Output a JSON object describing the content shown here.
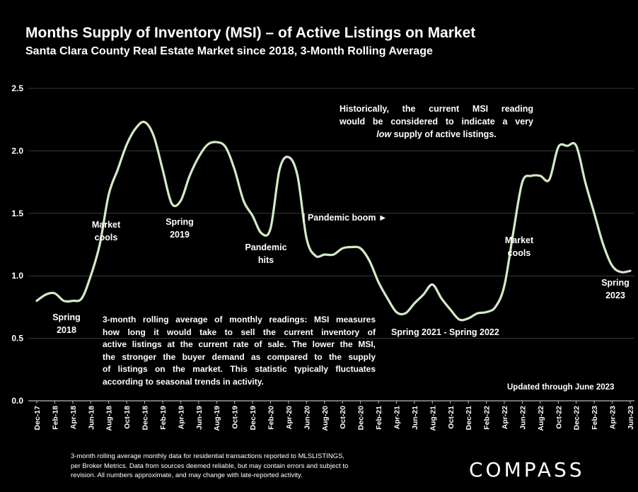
{
  "header": {
    "title": "Months Supply of Inventory (MSI) – of Active Listings on Market",
    "subtitle": "Santa Clara County Real Estate Market since 2018, 3-Month Rolling Average"
  },
  "chart_data": {
    "type": "line",
    "ylim": [
      0,
      2.5
    ],
    "yticks": [
      "0.0",
      "0.5",
      "1.0",
      "1.5",
      "2.0",
      "2.5"
    ],
    "ytick_values": [
      0,
      0.5,
      1.0,
      1.5,
      2.0,
      2.5
    ],
    "grid": true,
    "line_color": "#d3ebc5",
    "x_tick_labels": [
      "Dec-17",
      "Feb-18",
      "Apr-18",
      "Jun-18",
      "Aug-18",
      "Oct-18",
      "Dec-18",
      "Feb-19",
      "Apr-19",
      "Jun-19",
      "Aug-19",
      "Oct-19",
      "Dec-19",
      "Feb-20",
      "Apr-20",
      "Jun-20",
      "Aug-20",
      "Oct-20",
      "Dec-20",
      "Feb-21",
      "Apr-21",
      "Jun-21",
      "Aug-21",
      "Oct-21",
      "Dec-21",
      "Feb-22",
      "Apr-22",
      "Jun-22",
      "Aug-22",
      "Oct-22",
      "Dec-22",
      "Feb-23",
      "Apr-23",
      "Jun-23"
    ],
    "x": [
      "Dec-17",
      "Jan-18",
      "Feb-18",
      "Mar-18",
      "Apr-18",
      "May-18",
      "Jun-18",
      "Jul-18",
      "Aug-18",
      "Sep-18",
      "Oct-18",
      "Nov-18",
      "Dec-18",
      "Jan-19",
      "Feb-19",
      "Mar-19",
      "Apr-19",
      "May-19",
      "Jun-19",
      "Jul-19",
      "Aug-19",
      "Sep-19",
      "Oct-19",
      "Nov-19",
      "Dec-19",
      "Jan-20",
      "Feb-20",
      "Mar-20",
      "Apr-20",
      "May-20",
      "Jun-20",
      "Jul-20",
      "Aug-20",
      "Sep-20",
      "Oct-20",
      "Nov-20",
      "Dec-20",
      "Jan-21",
      "Feb-21",
      "Mar-21",
      "Apr-21",
      "May-21",
      "Jun-21",
      "Jul-21",
      "Aug-21",
      "Sep-21",
      "Oct-21",
      "Nov-21",
      "Dec-21",
      "Jan-22",
      "Feb-22",
      "Mar-22",
      "Apr-22",
      "May-22",
      "Jun-22",
      "Jul-22",
      "Aug-22",
      "Sep-22",
      "Oct-22",
      "Nov-22",
      "Dec-22",
      "Jan-23",
      "Feb-23",
      "Mar-23",
      "Apr-23",
      "May-23",
      "Jun-23"
    ],
    "values": [
      0.8,
      0.85,
      0.86,
      0.8,
      0.8,
      0.82,
      1.0,
      1.25,
      1.65,
      1.85,
      2.05,
      2.18,
      2.23,
      2.12,
      1.85,
      1.58,
      1.6,
      1.8,
      1.95,
      2.05,
      2.07,
      2.03,
      1.85,
      1.6,
      1.48,
      1.34,
      1.38,
      1.85,
      1.95,
      1.8,
      1.3,
      1.16,
      1.17,
      1.17,
      1.22,
      1.23,
      1.22,
      1.12,
      0.95,
      0.82,
      0.71,
      0.7,
      0.78,
      0.85,
      0.93,
      0.82,
      0.73,
      0.65,
      0.66,
      0.7,
      0.71,
      0.75,
      0.92,
      1.35,
      1.75,
      1.8,
      1.8,
      1.77,
      2.03,
      2.04,
      2.04,
      1.75,
      1.5,
      1.25,
      1.08,
      1.03,
      1.04
    ]
  },
  "annotations": {
    "historically_1": "Historically, the current MSI reading",
    "historically_2": "would be considered to indicate a very",
    "historically_3_em": "low",
    "historically_3_rest": " supply of active listings.",
    "spring2018": "Spring\n2018",
    "market_cools_1": "Market\ncools",
    "spring2019": "Spring\n2019",
    "pandemic_hits": "Pandemic\nhits",
    "pandemic_boom": "| Pandemic boom ►",
    "spring2021_2022": "Spring 2021 - Spring 2022",
    "market_cools_2": "Market\ncools",
    "spring2023": "Spring\n2023",
    "updated": "Updated through June 2023",
    "desc_lines": [
      "3-month rolling average of monthly readings: MSI measures",
      "how long it would take to sell the current inventory of",
      "active listings at the current rate of sale. The lower the MSI,",
      "the stronger the buyer demand as compared to the supply",
      "of listings on the market. This statistic typically fluctuates",
      "according to seasonal trends in activity."
    ]
  },
  "footer": {
    "footnote_lines": [
      "3-month rolling average monthly data for residential transactions reported to MLSLISTINGS,",
      "per Broker Metrics. Data from sources deemed reliable, but may contain errors and subject to",
      "revision. All numbers approximate, and may change with late-reported activity."
    ],
    "logo": "COMPASS"
  }
}
